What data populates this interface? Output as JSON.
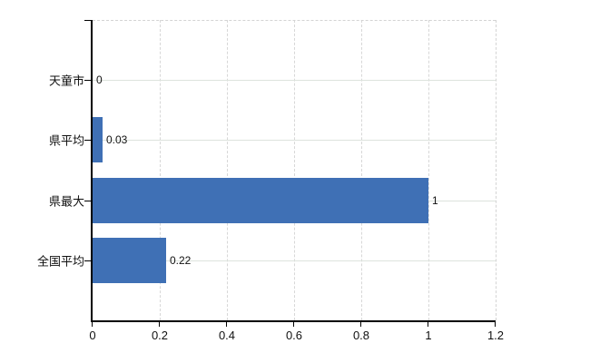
{
  "chart": {
    "background_color": "#ffffff",
    "bar_color": "#3f70b5",
    "axis_color": "#000000",
    "vertical_grid_color": "#d7d7d7",
    "horizontal_grid_color": "#dde3dd",
    "border_dash_color": "#d4d4d4",
    "text_color": "#111111"
  },
  "chart_data": {
    "type": "bar",
    "orientation": "horizontal",
    "title": "",
    "xlabel": "",
    "ylabel": "",
    "categories": [
      "天童市",
      "県平均",
      "県最大",
      "全国平均"
    ],
    "values": [
      0,
      0.03,
      1,
      0.22
    ],
    "value_labels": [
      "0",
      "0.03",
      "1",
      "0.22"
    ],
    "xlim": [
      0,
      1.2
    ],
    "x_ticks": [
      0,
      0.2,
      0.4,
      0.6,
      0.8,
      1,
      1.2
    ],
    "x_tick_labels": [
      "0",
      "0.2",
      "0.4",
      "0.6",
      "0.8",
      "1",
      "1.2"
    ],
    "grid": true,
    "legend": false
  }
}
